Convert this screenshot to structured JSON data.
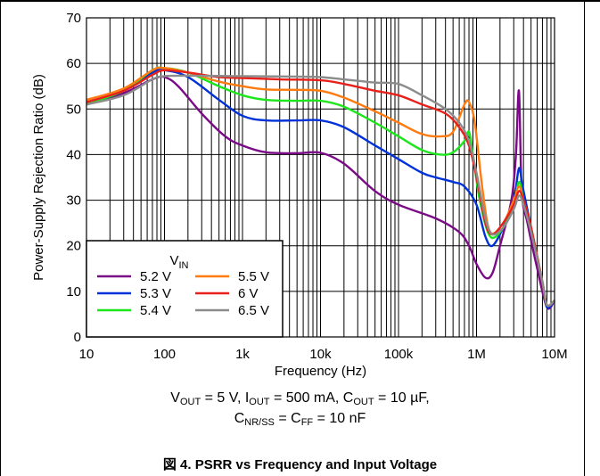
{
  "chart_data": {
    "type": "line",
    "xscale": "log",
    "xlim": [
      10,
      10000000
    ],
    "ylim": [
      0,
      70
    ],
    "xlabel": "Frequency (Hz)",
    "ylabel": "Power-Supply Rejection Ratio (dB)",
    "x_ticks": [
      "10",
      "100",
      "1k",
      "10k",
      "100k",
      "1M",
      "10M"
    ],
    "y_ticks": [
      "0",
      "10",
      "20",
      "30",
      "40",
      "50",
      "60",
      "70"
    ],
    "grid": true,
    "legend": {
      "title": "V",
      "title_sub": "IN",
      "position": "bottom-left"
    },
    "series": [
      {
        "name": "5.2 V",
        "color": "#7b0a86",
        "points": [
          [
            10,
            51
          ],
          [
            30,
            53.5
          ],
          [
            70,
            56.5
          ],
          [
            100,
            57
          ],
          [
            150,
            55
          ],
          [
            300,
            49
          ],
          [
            600,
            44
          ],
          [
            1000,
            42
          ],
          [
            2000,
            40.5
          ],
          [
            5000,
            40.3
          ],
          [
            10000,
            40.4
          ],
          [
            20000,
            38
          ],
          [
            50000,
            32
          ],
          [
            100000,
            29
          ],
          [
            300000,
            26
          ],
          [
            600000,
            23
          ],
          [
            800000,
            20
          ],
          [
            1000000,
            16
          ],
          [
            1300000,
            13
          ],
          [
            1600000,
            14
          ],
          [
            2000000,
            20
          ],
          [
            2800000,
            30
          ],
          [
            3200000,
            40
          ],
          [
            3500000,
            54
          ],
          [
            3800000,
            32
          ],
          [
            4500000,
            25
          ],
          [
            6000000,
            15
          ],
          [
            8000000,
            6.5
          ],
          [
            10000000,
            8
          ]
        ]
      },
      {
        "name": "5.3 V",
        "color": "#0032d9",
        "points": [
          [
            10,
            51
          ],
          [
            30,
            54
          ],
          [
            70,
            58
          ],
          [
            100,
            58.5
          ],
          [
            200,
            57
          ],
          [
            500,
            52
          ],
          [
            1000,
            48.5
          ],
          [
            2000,
            47.5
          ],
          [
            5000,
            47.5
          ],
          [
            10000,
            47.5
          ],
          [
            20000,
            46
          ],
          [
            50000,
            42
          ],
          [
            100000,
            39
          ],
          [
            200000,
            36
          ],
          [
            300000,
            35
          ],
          [
            500000,
            34
          ],
          [
            700000,
            33
          ],
          [
            1000000,
            29
          ],
          [
            1300000,
            22
          ],
          [
            1600000,
            20
          ],
          [
            2200000,
            24
          ],
          [
            3000000,
            30
          ],
          [
            3500000,
            37
          ],
          [
            3900000,
            33
          ],
          [
            5000000,
            24
          ],
          [
            7000000,
            12
          ],
          [
            8000000,
            6.5
          ],
          [
            10000000,
            8
          ]
        ]
      },
      {
        "name": "5.4 V",
        "color": "#1ce61c",
        "points": [
          [
            10,
            51
          ],
          [
            30,
            54
          ],
          [
            70,
            58.5
          ],
          [
            100,
            59
          ],
          [
            200,
            58
          ],
          [
            500,
            55
          ],
          [
            1000,
            53
          ],
          [
            2000,
            52
          ],
          [
            5000,
            51.8
          ],
          [
            10000,
            51.8
          ],
          [
            20000,
            50.5
          ],
          [
            50000,
            47
          ],
          [
            100000,
            44
          ],
          [
            200000,
            41
          ],
          [
            350000,
            40
          ],
          [
            500000,
            40.5
          ],
          [
            700000,
            43
          ],
          [
            800000,
            45
          ],
          [
            900000,
            40
          ],
          [
            1100000,
            30
          ],
          [
            1500000,
            22
          ],
          [
            2200000,
            24
          ],
          [
            3000000,
            29
          ],
          [
            3500000,
            34
          ],
          [
            4000000,
            30
          ],
          [
            5000000,
            24
          ],
          [
            7000000,
            12
          ],
          [
            8000000,
            7
          ],
          [
            10000000,
            8
          ]
        ]
      },
      {
        "name": "5.5 V",
        "color": "#ff7a0f",
        "points": [
          [
            10,
            52
          ],
          [
            30,
            54.5
          ],
          [
            70,
            58.5
          ],
          [
            100,
            59
          ],
          [
            200,
            58
          ],
          [
            500,
            56
          ],
          [
            1000,
            55
          ],
          [
            2000,
            54.3
          ],
          [
            5000,
            54.2
          ],
          [
            10000,
            54
          ],
          [
            20000,
            52.5
          ],
          [
            50000,
            49.5
          ],
          [
            100000,
            47
          ],
          [
            200000,
            44.5
          ],
          [
            350000,
            44
          ],
          [
            500000,
            45
          ],
          [
            700000,
            51
          ],
          [
            800000,
            51.5
          ],
          [
            950000,
            47
          ],
          [
            1200000,
            32
          ],
          [
            1500000,
            23
          ],
          [
            2200000,
            25
          ],
          [
            3000000,
            30
          ],
          [
            3500000,
            33
          ],
          [
            4000000,
            30
          ],
          [
            5000000,
            24
          ],
          [
            7000000,
            12
          ],
          [
            8000000,
            7
          ],
          [
            10000000,
            8
          ]
        ]
      },
      {
        "name": "6 V",
        "color": "#e8201a",
        "points": [
          [
            10,
            51.5
          ],
          [
            30,
            54
          ],
          [
            70,
            57.5
          ],
          [
            100,
            58.5
          ],
          [
            200,
            58
          ],
          [
            500,
            57
          ],
          [
            1000,
            56.8
          ],
          [
            3000,
            56.5
          ],
          [
            10000,
            56.3
          ],
          [
            20000,
            55.5
          ],
          [
            50000,
            54
          ],
          [
            100000,
            53
          ],
          [
            200000,
            51
          ],
          [
            400000,
            49
          ],
          [
            600000,
            46
          ],
          [
            800000,
            42
          ],
          [
            1000000,
            35
          ],
          [
            1300000,
            25
          ],
          [
            1600000,
            22.5
          ],
          [
            2200000,
            25
          ],
          [
            3000000,
            29
          ],
          [
            3500000,
            32
          ],
          [
            4000000,
            30
          ],
          [
            5000000,
            24
          ],
          [
            7000000,
            12
          ],
          [
            8000000,
            7
          ],
          [
            10000000,
            8
          ]
        ]
      },
      {
        "name": "6.5 V",
        "color": "#8c8c8c",
        "points": [
          [
            10,
            51
          ],
          [
            30,
            53
          ],
          [
            70,
            56.5
          ],
          [
            100,
            57.2
          ],
          [
            200,
            57.3
          ],
          [
            1000,
            57.2
          ],
          [
            5000,
            57.1
          ],
          [
            10000,
            57
          ],
          [
            20000,
            56.5
          ],
          [
            50000,
            55.8
          ],
          [
            100000,
            55.5
          ],
          [
            200000,
            53
          ],
          [
            400000,
            50
          ],
          [
            600000,
            47
          ],
          [
            800000,
            43
          ],
          [
            1000000,
            36
          ],
          [
            1300000,
            26
          ],
          [
            1600000,
            22.5
          ],
          [
            2200000,
            24
          ],
          [
            3000000,
            28
          ],
          [
            3500000,
            31
          ],
          [
            4000000,
            29
          ],
          [
            5000000,
            23
          ],
          [
            7000000,
            12
          ],
          [
            8000000,
            7
          ],
          [
            10000000,
            8
          ]
        ]
      }
    ]
  },
  "caption": {
    "line1": [
      {
        "t": "V"
      },
      {
        "s": "OUT"
      },
      {
        "t": " = 5 V, I"
      },
      {
        "s": "OUT"
      },
      {
        "t": " = 500 mA, C"
      },
      {
        "s": "OUT"
      },
      {
        "t": " = 10 µF,"
      }
    ],
    "line2": [
      {
        "t": "C"
      },
      {
        "s": "NR/SS"
      },
      {
        "t": " = C"
      },
      {
        "s": "FF"
      },
      {
        "t": " = 10 nF"
      }
    ]
  },
  "figure_title": "図 4. PSRR vs Frequency and Input Voltage"
}
